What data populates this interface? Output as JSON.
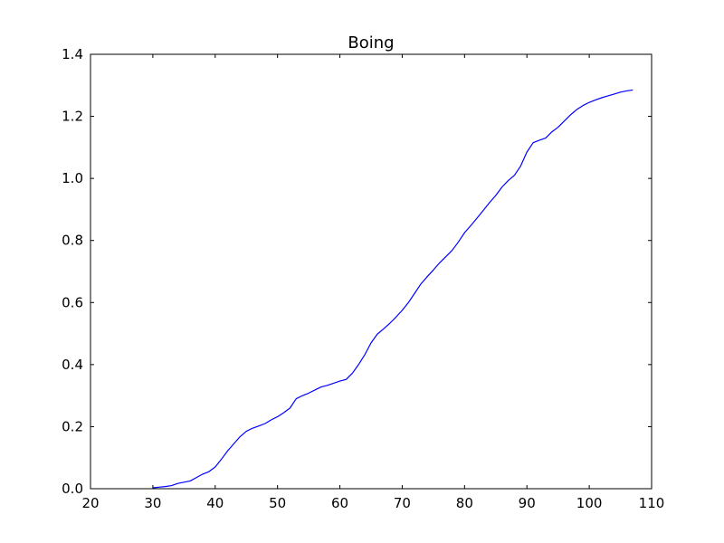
{
  "chart_data": {
    "type": "line",
    "title": "Boing",
    "xlabel": "",
    "ylabel": "",
    "xlim": [
      20,
      110
    ],
    "ylim": [
      0.0,
      1.4
    ],
    "x_ticks": [
      20,
      30,
      40,
      50,
      60,
      70,
      80,
      90,
      100,
      110
    ],
    "x_tick_labels": [
      "20",
      "30",
      "40",
      "50",
      "60",
      "70",
      "80",
      "90",
      "100",
      "110"
    ],
    "y_ticks": [
      0.0,
      0.2,
      0.4,
      0.6,
      0.8,
      1.0,
      1.2,
      1.4
    ],
    "y_tick_labels": [
      "0.0",
      "0.2",
      "0.4",
      "0.6",
      "0.8",
      "1.0",
      "1.2",
      "1.4"
    ],
    "grid": false,
    "legend": "none",
    "series": [
      {
        "color": "#0000ff",
        "x": [
          30,
          31,
          32,
          33,
          34,
          35,
          36,
          37,
          38,
          39,
          40,
          41,
          42,
          43,
          44,
          45,
          46,
          47,
          48,
          49,
          50,
          51,
          52,
          53,
          54,
          55,
          56,
          57,
          58,
          59,
          60,
          61,
          62,
          63,
          64,
          65,
          66,
          67,
          68,
          69,
          70,
          71,
          72,
          73,
          74,
          75,
          76,
          77,
          78,
          79,
          80,
          81,
          82,
          83,
          84,
          85,
          86,
          87,
          88,
          89,
          90,
          91,
          92,
          93,
          94,
          95,
          96,
          97,
          98,
          99,
          100,
          101,
          102,
          103,
          104,
          105,
          106,
          107
        ],
        "y": [
          0.003,
          0.005,
          0.007,
          0.01,
          0.017,
          0.021,
          0.025,
          0.036,
          0.047,
          0.055,
          0.07,
          0.095,
          0.122,
          0.145,
          0.168,
          0.185,
          0.195,
          0.202,
          0.21,
          0.222,
          0.232,
          0.245,
          0.26,
          0.29,
          0.3,
          0.308,
          0.318,
          0.328,
          0.333,
          0.34,
          0.347,
          0.352,
          0.372,
          0.4,
          0.432,
          0.47,
          0.498,
          0.515,
          0.533,
          0.553,
          0.575,
          0.6,
          0.63,
          0.66,
          0.683,
          0.705,
          0.728,
          0.748,
          0.768,
          0.795,
          0.825,
          0.848,
          0.872,
          0.897,
          0.922,
          0.945,
          0.972,
          0.993,
          1.01,
          1.04,
          1.085,
          1.115,
          1.123,
          1.13,
          1.15,
          1.165,
          1.185,
          1.205,
          1.222,
          1.235,
          1.245,
          1.253,
          1.26,
          1.266,
          1.272,
          1.278,
          1.282,
          1.285
        ]
      }
    ]
  }
}
